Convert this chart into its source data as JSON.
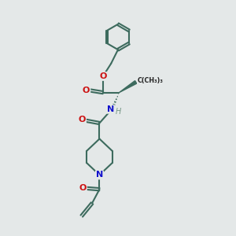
{
  "background_color": "#e4e8e8",
  "bond_color": "#3d6b5e",
  "bond_width": 1.5,
  "O_color": "#cc1111",
  "N_color": "#1111cc",
  "H_color": "#7a9a8a",
  "figsize": [
    3.0,
    3.0
  ],
  "dpi": 100,
  "xlim": [
    0,
    6
  ],
  "ylim": [
    0,
    10
  ]
}
